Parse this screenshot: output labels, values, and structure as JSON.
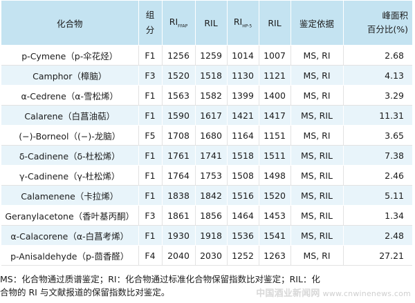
{
  "table": {
    "headers": {
      "compound": "化合物",
      "fraction_a": "组",
      "fraction_b": "分",
      "ri_ffap": "RI",
      "ri_ffap_sub": "FFAP",
      "ril_1": "RIL",
      "ri_hp5": "RI",
      "ri_hp5_sub": "HP-5",
      "ril_2": "RIL",
      "basis": "鉴定依据",
      "peak_a": "峰面积",
      "peak_b": "百分比(%)"
    },
    "rows": [
      {
        "compound": "p-Cymene（p-伞花烃）",
        "fraction": "F1",
        "ri_ffap": "1256",
        "ril_1": "1259",
        "ri_hp5": "1014",
        "ril_2": "1007",
        "basis": "MS, RI",
        "peak": "2.68"
      },
      {
        "compound": "Camphor（樟脑）",
        "fraction": "F3",
        "ri_ffap": "1520",
        "ril_1": "1518",
        "ri_hp5": "1130",
        "ril_2": "1121",
        "basis": "MS, RI",
        "peak": "4.13"
      },
      {
        "compound": "α-Cedrene（α-雪松烯）",
        "fraction": "F1",
        "ri_ffap": "1563",
        "ril_1": "1582",
        "ri_hp5": "1399",
        "ril_2": "1400",
        "basis": "MS, RI",
        "peak": "3.29"
      },
      {
        "compound": "Calarene（白菖油萜）",
        "fraction": "F1",
        "ri_ffap": "1590",
        "ril_1": "1617",
        "ri_hp5": "1421",
        "ril_2": "1417",
        "basis": "MS, RIL",
        "peak": "11.31"
      },
      {
        "compound": "(−)-Borneol（(−)-龙脑）",
        "fraction": "F5",
        "ri_ffap": "1708",
        "ril_1": "1680",
        "ri_hp5": "1164",
        "ril_2": "1151",
        "basis": "MS, RI",
        "peak": "3.65"
      },
      {
        "compound": "δ-Cadinene（δ-杜松烯）",
        "fraction": "F1",
        "ri_ffap": "1761",
        "ril_1": "1741",
        "ri_hp5": "1518",
        "ril_2": "1511",
        "basis": "MS, RIL",
        "peak": "7.38"
      },
      {
        "compound": "γ-Cadinene（γ-杜松烯）",
        "fraction": "F1",
        "ri_ffap": "1764",
        "ril_1": "1753",
        "ri_hp5": "1508",
        "ril_2": "1498",
        "basis": "MS, RIL",
        "peak": "2.46"
      },
      {
        "compound": "Calamenene（卡拉烯）",
        "fraction": "F1",
        "ri_ffap": "1838",
        "ril_1": "1842",
        "ri_hp5": "1516",
        "ril_2": "1520",
        "basis": "MS, RIL",
        "peak": "5.11"
      },
      {
        "compound": "Geranylacetone（香叶基丙酮）",
        "fraction": "F3",
        "ri_ffap": "1861",
        "ril_1": "1856",
        "ri_hp5": "1464",
        "ril_2": "1453",
        "basis": "MS, RIL",
        "peak": "1.34"
      },
      {
        "compound": "α-Calacorene（α-白菖考烯）",
        "fraction": "F1",
        "ri_ffap": "1930",
        "ril_1": "1918",
        "ri_hp5": "1536",
        "ril_2": "1541",
        "basis": "MS, RIL",
        "peak": "2.48"
      },
      {
        "compound": "p-Anisaldehyde（p-茴香醛）",
        "fraction": "F4",
        "ri_ffap": "2040",
        "ril_1": "2030",
        "ri_hp5": "1252",
        "ril_2": "1263",
        "basis": "MS, RI",
        "peak": "27.21"
      }
    ]
  },
  "footnote": {
    "line1": "MS：化合物通过质谱鉴定；RI：化合物通过标准化合物保留指数比对鉴定；RIL：化",
    "line2": "合物的 RI 与文献报道的保留指数比对鉴定。"
  },
  "watermark": {
    "name": "中国酒业新闻网",
    "url": "www.cnwinenews.com"
  }
}
